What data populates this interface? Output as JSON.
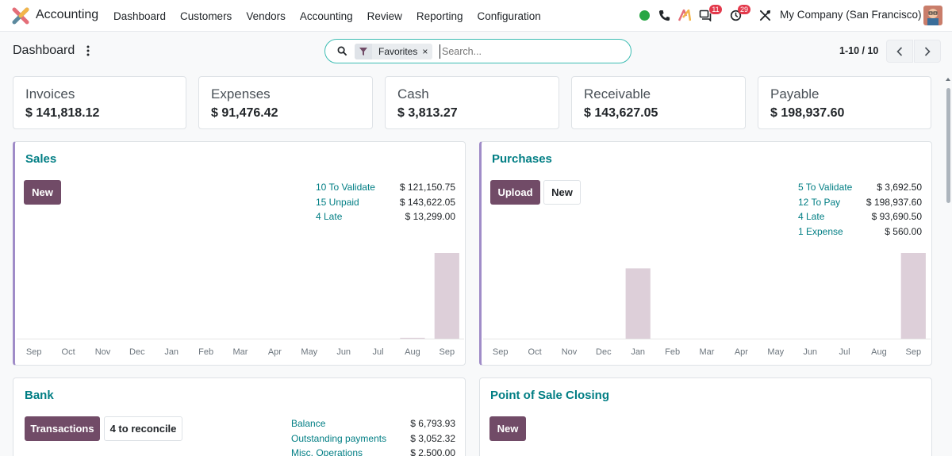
{
  "navbar": {
    "app_name": "Accounting",
    "menu": [
      "Dashboard",
      "Customers",
      "Vendors",
      "Accounting",
      "Review",
      "Reporting",
      "Configuration"
    ],
    "messages_count": "11",
    "activities_count": "29",
    "company": "My Company (San Francisco)"
  },
  "control_panel": {
    "title": "Dashboard",
    "facet": "Favorites",
    "facet_remove": "×",
    "search_placeholder": "Search...",
    "pager": "1-10 / 10"
  },
  "stats": [
    {
      "label": "Invoices",
      "value": "$ 141,818.12"
    },
    {
      "label": "Expenses",
      "value": "$ 91,476.42"
    },
    {
      "label": "Cash",
      "value": "$ 3,813.27"
    },
    {
      "label": "Receivable",
      "value": "$ 143,627.05"
    },
    {
      "label": "Payable",
      "value": "$ 198,937.60"
    }
  ],
  "sales": {
    "title": "Sales",
    "btn_new": "New",
    "kpis": [
      {
        "label": "10 To Validate",
        "value": "$ 121,150.75"
      },
      {
        "label": "15 Unpaid",
        "value": "$ 143,622.05"
      },
      {
        "label": "4 Late",
        "value": "$ 13,299.00"
      }
    ]
  },
  "purchases": {
    "title": "Purchases",
    "btn_upload": "Upload",
    "btn_new": "New",
    "kpis": [
      {
        "label": "5 To Validate",
        "value": "$ 3,692.50"
      },
      {
        "label": "12 To Pay",
        "value": "$ 198,937.60"
      },
      {
        "label": "4 Late",
        "value": "$ 93,690.50"
      },
      {
        "label": "1 Expense",
        "value": "$ 560.00"
      }
    ]
  },
  "bank": {
    "title": "Bank",
    "btn_transactions": "Transactions",
    "btn_reconcile": "4 to reconcile",
    "kpis": [
      {
        "label": "Balance",
        "value": "$ 6,793.93"
      },
      {
        "label": "Outstanding payments",
        "value": "$ 3,052.32"
      },
      {
        "label": "Misc. Operations",
        "value": "$ 2,500.00"
      }
    ]
  },
  "pos": {
    "title": "Point of Sale Closing",
    "btn_new": "New"
  },
  "chart_data": [
    {
      "type": "bar",
      "categories": [
        "Sep",
        "Oct",
        "Nov",
        "Dec",
        "Jan",
        "Feb",
        "Mar",
        "Apr",
        "May",
        "Jun",
        "Jul",
        "Aug",
        "Sep"
      ],
      "values": [
        0,
        0,
        0,
        0,
        0,
        0,
        0,
        0,
        0,
        0,
        0,
        1,
        100
      ]
    },
    {
      "type": "bar",
      "categories": [
        "Sep",
        "Oct",
        "Nov",
        "Dec",
        "Jan",
        "Feb",
        "Mar",
        "Apr",
        "May",
        "Jun",
        "Jul",
        "Aug",
        "Sep"
      ],
      "values": [
        0,
        0,
        0,
        0,
        82,
        0,
        0,
        0,
        0,
        0,
        0,
        0,
        100
      ]
    }
  ],
  "colors": {
    "primary": "#714b67",
    "link": "#017e84",
    "bar": "#ddcfd9",
    "accent": "#a08cc8"
  }
}
